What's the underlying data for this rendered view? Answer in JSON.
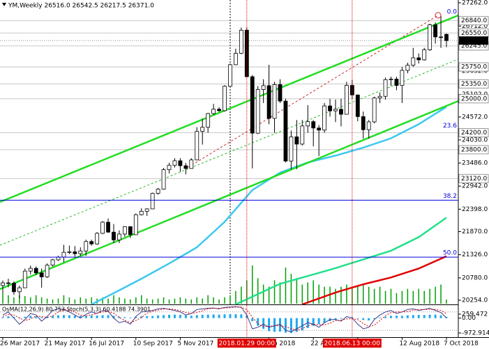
{
  "chart_data": {
    "type": "candlestick",
    "title": "YM,Weekly  26516.0 26542.5 26217.5 26371.0",
    "categories": [
      "26 Mar 2017",
      null,
      null,
      null,
      null,
      null,
      null,
      null,
      "21 May 2017",
      null,
      null,
      null,
      null,
      null,
      null,
      null,
      "16 Jul 2017",
      null,
      null,
      null,
      null,
      null,
      null,
      null,
      "10 Sep 2017",
      null,
      null,
      null,
      null,
      null,
      null,
      null,
      "5 Nov 2017",
      null,
      null,
      null,
      null,
      null,
      null,
      null,
      null,
      null,
      null,
      null,
      "2018.01.29 00:00",
      null,
      null,
      null,
      "Feb 2018",
      null,
      null,
      null,
      null,
      null,
      null,
      null,
      "22 A",
      null,
      null,
      null,
      null,
      null,
      null,
      "2018.06.13 00:00",
      "018",
      null,
      null,
      null,
      null,
      null,
      null,
      null,
      "12 Aug 2018",
      null,
      null,
      null,
      null,
      null,
      null,
      null,
      "7 Oct 2018"
    ],
    "highlight_categories": [
      44,
      63
    ],
    "open": [
      20600,
      20663,
      20656,
      20453,
      20547,
      20940,
      21006,
      20897,
      20804,
      21080,
      21206,
      21271,
      21384,
      21394,
      21350,
      21414,
      21637,
      21580,
      21830,
      22092,
      21858,
      21674,
      21813,
      21987,
      21797,
      22268,
      22349,
      22405,
      22773,
      22871,
      23329,
      23434,
      23539,
      23422,
      23358,
      23558,
      24231,
      24329,
      24651,
      24754,
      24719,
      25295,
      25803,
      26071,
      26616,
      25520,
      24190,
      25219,
      25309,
      24538,
      25335,
      24946,
      23533,
      24103,
      23932,
      24360,
      24462,
      24311,
      24262,
      24831,
      24715,
      24753,
      24635,
      25316,
      25090,
      24580,
      24271,
      24456,
      25019,
      25058,
      25451,
      25463,
      25313,
      25669,
      25790,
      25965,
      25917,
      26154,
      26743,
      26458,
      26516
    ],
    "high": [
      20720,
      20760,
      20700,
      20600,
      21000,
      21070,
      21050,
      21000,
      21120,
      21230,
      21300,
      21560,
      21540,
      21530,
      21500,
      21680,
      21680,
      21860,
      22120,
      22180,
      22050,
      21900,
      22000,
      22000,
      22300,
      22420,
      22420,
      22790,
      22900,
      23370,
      23490,
      23600,
      23600,
      23490,
      23600,
      24330,
      24530,
      24670,
      24880,
      24800,
      25320,
      25830,
      26180,
      26680,
      26680,
      25560,
      25300,
      25460,
      25800,
      25400,
      25460,
      25000,
      24250,
      24500,
      24500,
      24850,
      24500,
      24380,
      24900,
      25000,
      24980,
      25000,
      25400,
      25450,
      25100,
      24700,
      24500,
      25050,
      25150,
      25500,
      25520,
      25520,
      25750,
      25850,
      26200,
      26070,
      26200,
      26770,
      26800,
      26950,
      26542.5
    ],
    "low": [
      20420,
      20560,
      20380,
      20300,
      20540,
      20860,
      20850,
      20550,
      20780,
      21050,
      21180,
      21150,
      21340,
      21280,
      21300,
      21300,
      21540,
      21560,
      21810,
      21840,
      21600,
      21600,
      21750,
      21720,
      21790,
      22250,
      22240,
      22400,
      22740,
      22860,
      23240,
      23380,
      23280,
      23220,
      23350,
      23550,
      23920,
      24200,
      24620,
      24690,
      24700,
      25280,
      25790,
      26050,
      25500,
      23360,
      24170,
      24900,
      24400,
      24200,
      24900,
      23500,
      23340,
      23340,
      23900,
      24200,
      23880,
      23650,
      24200,
      24580,
      24450,
      24350,
      24630,
      25000,
      24470,
      24060,
      24060,
      24420,
      24900,
      24980,
      25300,
      25200,
      24900,
      25600,
      25750,
      25830,
      25900,
      26130,
      26300,
      26200,
      26217.5
    ],
    "close": [
      20663,
      20656,
      20453,
      20547,
      20940,
      21006,
      20897,
      20804,
      21080,
      21206,
      21271,
      21384,
      21394,
      21350,
      21414,
      21637,
      21580,
      21830,
      22092,
      21858,
      21674,
      21813,
      21987,
      21797,
      22268,
      22349,
      22405,
      22773,
      22871,
      23329,
      23434,
      23539,
      23422,
      23358,
      23558,
      24231,
      24329,
      24651,
      24754,
      24719,
      25295,
      25803,
      26071,
      26616,
      25520,
      24190,
      25219,
      25309,
      24538,
      25335,
      24946,
      23533,
      24103,
      23932,
      24360,
      24462,
      24311,
      24262,
      24831,
      24715,
      24753,
      24635,
      25316,
      25090,
      24580,
      24271,
      24456,
      25019,
      25058,
      25451,
      25463,
      25313,
      25669,
      25790,
      25965,
      25917,
      26154,
      26743,
      26458,
      26447,
      26371
    ],
    "volume": [
      25,
      20,
      15,
      20,
      18,
      15,
      20,
      15,
      12,
      10,
      12,
      20,
      15,
      10,
      15,
      12,
      15,
      12,
      15,
      12,
      20,
      15,
      12,
      10,
      15,
      20,
      12,
      10,
      12,
      15,
      10,
      12,
      15,
      12,
      10,
      15,
      12,
      20,
      15,
      10,
      15,
      20,
      30,
      40,
      55,
      90,
      60,
      45,
      40,
      55,
      50,
      85,
      70,
      60,
      45,
      50,
      55,
      45,
      40,
      40,
      35,
      40,
      45,
      35,
      40,
      45,
      40,
      35,
      40,
      30,
      35,
      25,
      30,
      35,
      30,
      35,
      30,
      35,
      40,
      45,
      10
    ],
    "volume_color": "#00a000",
    "bull_color": "#ffffff",
    "bear_color": "#000000",
    "ylim": [
      20155,
      27327
    ],
    "yticks": [
      {
        "value": 27262,
        "label": "27262.0"
      },
      {
        "value": 26712,
        "label": "26712.0"
      },
      {
        "value": 26182,
        "label": "26182.0"
      },
      {
        "value": 25652,
        "label": "25652.0"
      },
      {
        "value": 25102,
        "label": "25102.0"
      },
      {
        "value": 24572,
        "label": "24572.0"
      },
      {
        "value": 24030,
        "label": "24030.0"
      },
      {
        "value": 23486,
        "label": "23486.0"
      },
      {
        "value": 22942,
        "label": "22942.0"
      },
      {
        "value": 22398,
        "label": "22398.0"
      },
      {
        "value": 21870,
        "label": "21870.0"
      },
      {
        "value": 21326,
        "label": "21326.0"
      },
      {
        "value": 20780,
        "label": "20780.0"
      },
      {
        "value": 20254,
        "label": "20254.0"
      }
    ],
    "levels": [
      {
        "value": 26840,
        "label": "26840.0"
      },
      {
        "value": 26550,
        "label": "26550.0"
      },
      {
        "value": 26245,
        "label": "26245.0"
      },
      {
        "value": 25750,
        "label": "25750.0"
      },
      {
        "value": 25350,
        "label": "25350.0"
      },
      {
        "value": 25000,
        "label": "25000.0"
      },
      {
        "value": 24200,
        "label": "24200.0"
      },
      {
        "value": 23800,
        "label": "23800.0"
      },
      {
        "value": 23120,
        "label": "23120.0"
      }
    ],
    "last_price": {
      "value": 26371,
      "label": "26371.0"
    },
    "fib_color": "#0000dd",
    "fib_levels": [
      {
        "label": "0.0",
        "value": 26950,
        "show_line": false
      },
      {
        "label": "23.6",
        "value": 24269,
        "show_line": false
      },
      {
        "label": "38.2",
        "value": 22610,
        "show_line": true
      },
      {
        "label": "50.0",
        "value": 21269,
        "show_line": true
      }
    ],
    "moving_averages": [
      {
        "color": "#3cc8f0",
        "x": [
          16,
          20,
          25,
          30,
          35,
          40,
          43,
          45,
          50,
          55,
          60,
          65,
          70,
          75,
          80
        ],
        "values": [
          20155,
          20420,
          20760,
          21120,
          21500,
          22100,
          22550,
          22850,
          23260,
          23500,
          23660,
          23850,
          24070,
          24400,
          24810
        ]
      },
      {
        "color": "#22e08a",
        "x": [
          42,
          50,
          60,
          70,
          75,
          80
        ],
        "values": [
          20155,
          20640,
          21010,
          21420,
          21740,
          22200
        ]
      },
      {
        "color": "#e00000",
        "x": [
          54,
          60,
          65,
          70,
          75,
          80
        ],
        "values": [
          20155,
          20435,
          20630,
          20790,
          21000,
          21290
        ]
      }
    ],
    "oscillator": {
      "title": "OsMA(12,26,9) 80.753 Stoch(5,3,3) 60.4188 74.3901",
      "ylim": [
        -972.914,
        259.472
      ],
      "yticks": [
        259.472,
        {
          "value": 0,
          "label": "0.00"
        },
        -972.914
      ],
      "osma_color": "#1fa8f0",
      "osma": [
        60,
        120,
        80,
        40,
        90,
        150,
        120,
        60,
        80,
        140,
        180,
        200,
        190,
        170,
        150,
        160,
        180,
        170,
        190,
        200,
        150,
        90,
        60,
        40,
        80,
        120,
        130,
        140,
        180,
        200,
        220,
        230,
        210,
        180,
        160,
        200,
        220,
        230,
        240,
        230,
        250,
        259,
        255,
        250,
        180,
        -200,
        -500,
        -700,
        -850,
        -900,
        -880,
        -950,
        -972,
        -900,
        -800,
        -650,
        -500,
        -400,
        -300,
        -200,
        -100,
        -50,
        20,
        60,
        -40,
        -120,
        -150,
        -60,
        40,
        100,
        150,
        160,
        150,
        180,
        200,
        210,
        200,
        220,
        230,
        180,
        80.753
      ],
      "stoch_ylim": [
        0,
        100
      ],
      "stoch_levels": [
        20,
        80
      ],
      "stoch_main_color": "#3a3a8c",
      "stoch_signal_color": "#e00000",
      "stoch_main": [
        70,
        80,
        60,
        40,
        55,
        75,
        70,
        50,
        65,
        85,
        90,
        88,
        80,
        70,
        60,
        72,
        80,
        75,
        85,
        82,
        60,
        45,
        50,
        40,
        65,
        80,
        82,
        85,
        90,
        92,
        88,
        85,
        80,
        70,
        75,
        88,
        90,
        92,
        93,
        90,
        95,
        96,
        97,
        95,
        70,
        25,
        30,
        40,
        30,
        35,
        40,
        20,
        15,
        25,
        35,
        45,
        40,
        30,
        45,
        55,
        55,
        50,
        65,
        60,
        40,
        25,
        30,
        55,
        70,
        80,
        85,
        75,
        80,
        88,
        90,
        85,
        88,
        92,
        85,
        78,
        60.4188
      ],
      "stoch_signal": [
        65,
        72,
        70,
        60,
        52,
        57,
        67,
        65,
        62,
        67,
        80,
        88,
        86,
        79,
        70,
        67,
        71,
        76,
        80,
        81,
        76,
        62,
        52,
        45,
        52,
        62,
        76,
        82,
        86,
        89,
        90,
        88,
        84,
        78,
        75,
        78,
        84,
        90,
        92,
        92,
        93,
        94,
        96,
        96,
        87,
        63,
        42,
        32,
        33,
        35,
        35,
        32,
        25,
        20,
        25,
        35,
        40,
        38,
        38,
        43,
        52,
        53,
        57,
        58,
        55,
        42,
        32,
        37,
        52,
        68,
        78,
        80,
        80,
        81,
        86,
        88,
        88,
        88,
        88,
        85,
        74.3901
      ]
    }
  }
}
